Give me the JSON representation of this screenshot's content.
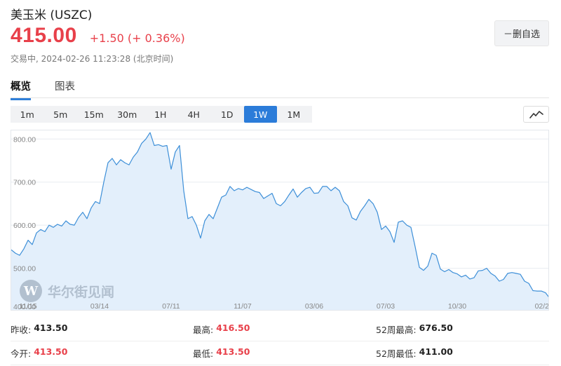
{
  "header": {
    "title": "美玉米 (USZC)",
    "price": "415.00",
    "change": "+1.50 (+ 0.36%)",
    "status": "交易中, 2024-02-26 11:23:28 (北京时间)",
    "watch_button": "－删自选"
  },
  "tabs": [
    {
      "label": "概览",
      "active": true
    },
    {
      "label": "图表",
      "active": false
    }
  ],
  "ranges": [
    {
      "label": "1m",
      "active": false
    },
    {
      "label": "5m",
      "active": false
    },
    {
      "label": "15m",
      "active": false
    },
    {
      "label": "30m",
      "active": false
    },
    {
      "label": "1H",
      "active": false
    },
    {
      "label": "4H",
      "active": false
    },
    {
      "label": "1D",
      "active": false
    },
    {
      "label": "1W",
      "active": true
    },
    {
      "label": "1M",
      "active": false
    }
  ],
  "chart_type_icon": "line-chart-icon",
  "watermark": {
    "logo": "W",
    "text": "华尔街见闻"
  },
  "colors": {
    "accent": "#2b7cd9",
    "up": "#e8404a",
    "line": "#3d8fd8",
    "fill": "#e3effb"
  },
  "chart_data": {
    "type": "area",
    "title": "",
    "xlabel": "",
    "ylabel": "",
    "ylim": [
      400,
      820
    ],
    "yticks": [
      "800.00",
      "700.00",
      "600.00",
      "500.00",
      "400.00"
    ],
    "ytick_values": [
      800,
      700,
      600,
      500,
      400
    ],
    "xticks": [
      "11/15",
      "03/14",
      "07/11",
      "11/07",
      "03/06",
      "07/03",
      "10/30",
      "02/2"
    ],
    "xtick_index": [
      4,
      21,
      38,
      55,
      72,
      89,
      106,
      123
    ],
    "series": [
      {
        "values": [
          543,
          535,
          530,
          545,
          565,
          555,
          582,
          590,
          585,
          600,
          595,
          602,
          598,
          610,
          602,
          600,
          618,
          630,
          615,
          640,
          655,
          650,
          700,
          745,
          755,
          740,
          752,
          745,
          740,
          758,
          770,
          790,
          800,
          815,
          785,
          787,
          783,
          785,
          730,
          770,
          785,
          680,
          615,
          620,
          600,
          570,
          610,
          625,
          615,
          640,
          665,
          670,
          690,
          680,
          685,
          682,
          688,
          683,
          678,
          676,
          662,
          668,
          674,
          650,
          645,
          655,
          670,
          684,
          665,
          676,
          685,
          688,
          674,
          675,
          690,
          690,
          680,
          688,
          680,
          655,
          645,
          617,
          612,
          632,
          645,
          660,
          650,
          630,
          590,
          598,
          585,
          560,
          607,
          610,
          600,
          595,
          550,
          502,
          495,
          505,
          535,
          530,
          498,
          492,
          497,
          490,
          487,
          480,
          484,
          475,
          478,
          494,
          495,
          500,
          488,
          482,
          470,
          474,
          488,
          490,
          488,
          486,
          470,
          465,
          448,
          447,
          447,
          443,
          430
        ]
      }
    ],
    "grid": true
  },
  "stats": [
    [
      {
        "label": "昨收:",
        "value": "413.50",
        "red": false
      },
      {
        "label": "最高:",
        "value": "416.50",
        "red": true
      },
      {
        "label": "52周最高:",
        "value": "676.50",
        "red": false
      }
    ],
    [
      {
        "label": "今开:",
        "value": "413.50",
        "red": true
      },
      {
        "label": "最低:",
        "value": "413.50",
        "red": true
      },
      {
        "label": "52周最低:",
        "value": "411.00",
        "red": false
      }
    ]
  ]
}
